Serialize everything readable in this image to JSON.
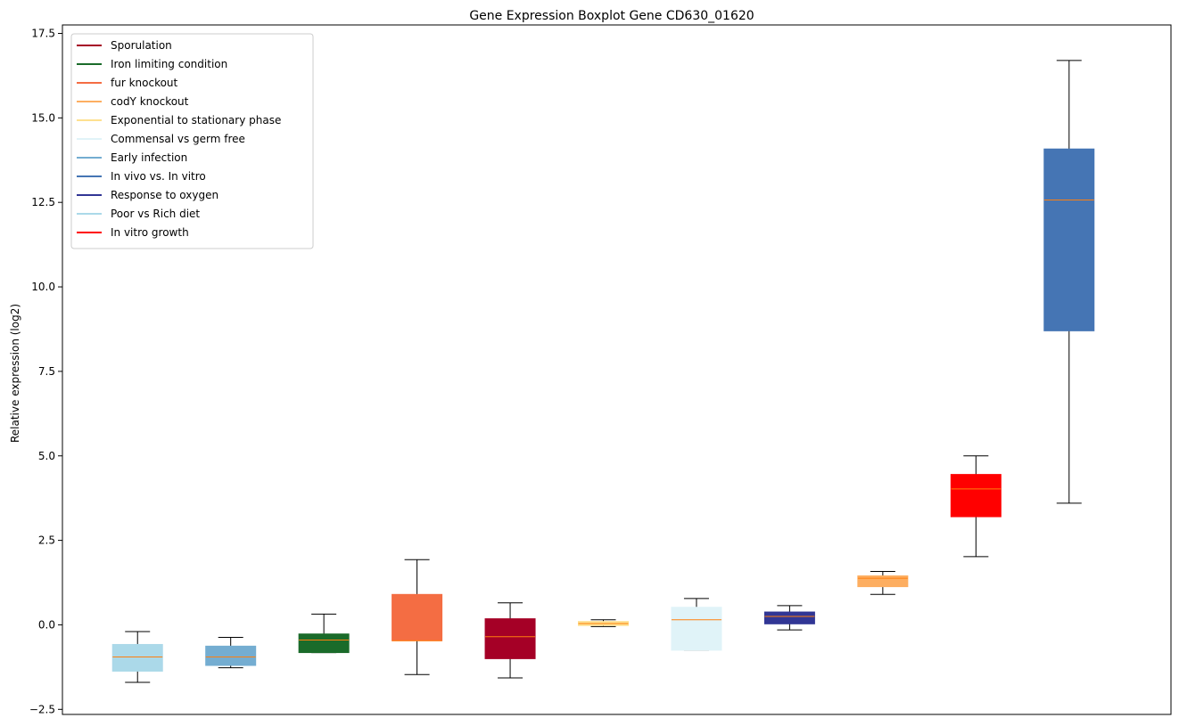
{
  "chart_data": {
    "type": "box",
    "title": "Gene Expression Boxplot Gene CD630_01620",
    "xlabel": "",
    "ylabel": "Relative expression (log2)",
    "ylim": [
      -2.65,
      17.75
    ],
    "yticks": [
      -2.5,
      0.0,
      2.5,
      5.0,
      7.5,
      10.0,
      12.5,
      15.0,
      17.5
    ],
    "ytick_labels": [
      "−2.5",
      "0.0",
      "2.5",
      "5.0",
      "7.5",
      "10.0",
      "12.5",
      "15.0",
      "17.5"
    ],
    "grid": false,
    "legend_position": "top-left",
    "median_color": "#ff7f0e",
    "legend": [
      {
        "label": "Sporulation",
        "color": "#a50026"
      },
      {
        "label": "Iron limiting condition",
        "color": "#1a6b2a"
      },
      {
        "label": "fur knockout",
        "color": "#f46d43"
      },
      {
        "label": "codY knockout",
        "color": "#fdae61"
      },
      {
        "label": "Exponential to stationary phase",
        "color": "#fee090"
      },
      {
        "label": "Commensal vs germ free",
        "color": "#e0f3f8"
      },
      {
        "label": "Early infection",
        "color": "#74add1"
      },
      {
        "label": "In vivo vs. In vitro",
        "color": "#4575b4"
      },
      {
        "label": "Response to oxygen",
        "color": "#313695"
      },
      {
        "label": "Poor vs Rich diet",
        "color": "#abd9e9"
      },
      {
        "label": "In vitro growth",
        "color": "#ff0000"
      }
    ],
    "boxes": [
      {
        "series": "Poor vs Rich diet",
        "color": "#abd9e9",
        "whislo": -1.7,
        "q1": -1.37,
        "med": -0.95,
        "q3": -0.58,
        "whishi": -0.2
      },
      {
        "series": "Early infection",
        "color": "#74add1",
        "whislo": -1.27,
        "q1": -1.2,
        "med": -0.95,
        "q3": -0.63,
        "whishi": -0.37
      },
      {
        "series": "Iron limiting condition",
        "color": "#1a6b2a",
        "whislo": -0.82,
        "q1": -0.82,
        "med": -0.45,
        "q3": -0.27,
        "whishi": 0.32
      },
      {
        "series": "fur knockout",
        "color": "#f46d43",
        "whislo": -1.47,
        "q1": -0.47,
        "med": -0.47,
        "q3": 0.9,
        "whishi": 1.93
      },
      {
        "series": "Sporulation",
        "color": "#a50026",
        "whislo": -1.57,
        "q1": -1.0,
        "med": -0.35,
        "q3": 0.18,
        "whishi": 0.65
      },
      {
        "series": "Exponential to stationary phase",
        "color": "#fee090",
        "whislo": -0.05,
        "q1": -0.02,
        "med": 0.04,
        "q3": 0.1,
        "whishi": 0.15
      },
      {
        "series": "Commensal vs germ free",
        "color": "#e0f3f8",
        "whislo": -0.75,
        "q1": -0.75,
        "med": 0.15,
        "q3": 0.52,
        "whishi": 0.78
      },
      {
        "series": "Response to oxygen",
        "color": "#313695",
        "whislo": -0.15,
        "q1": 0.03,
        "med": 0.25,
        "q3": 0.38,
        "whishi": 0.57
      },
      {
        "series": "codY knockout",
        "color": "#fdae61",
        "whislo": 0.9,
        "q1": 1.13,
        "med": 1.38,
        "q3": 1.45,
        "whishi": 1.58
      },
      {
        "series": "In vitro growth",
        "color": "#ff0000",
        "whislo": 2.02,
        "q1": 3.2,
        "med": 4.02,
        "q3": 4.45,
        "whishi": 5.0
      },
      {
        "series": "In vivo vs. In vitro",
        "color": "#4575b4",
        "whislo": 3.6,
        "q1": 8.7,
        "med": 12.57,
        "q3": 14.08,
        "whishi": 16.7
      }
    ]
  }
}
